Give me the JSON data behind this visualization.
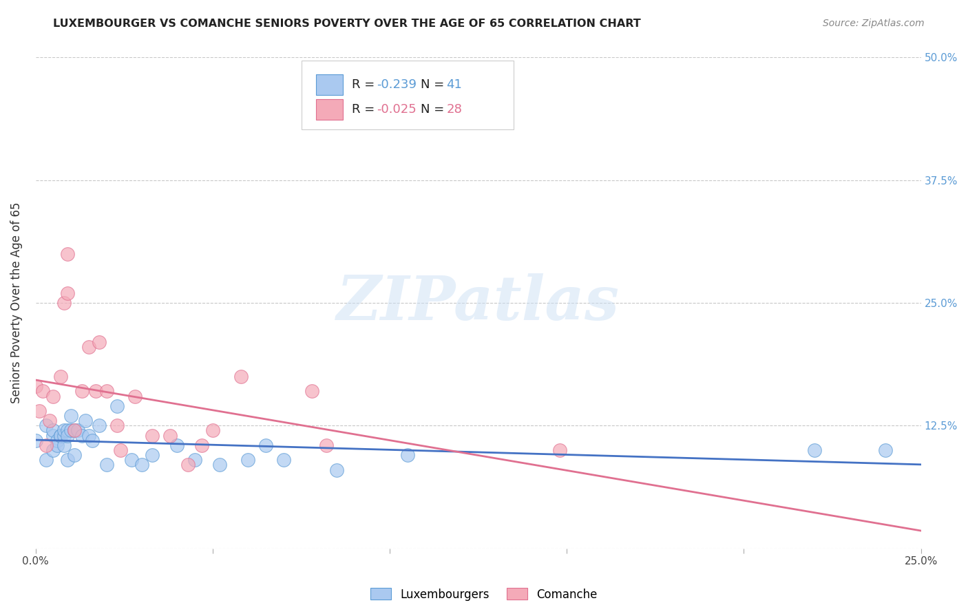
{
  "title": "LUXEMBOURGER VS COMANCHE SENIORS POVERTY OVER THE AGE OF 65 CORRELATION CHART",
  "source": "Source: ZipAtlas.com",
  "ylabel": "Seniors Poverty Over the Age of 65",
  "xlim": [
    0.0,
    0.25
  ],
  "ylim": [
    0.0,
    0.5
  ],
  "xticks": [
    0.0,
    0.05,
    0.1,
    0.15,
    0.2,
    0.25
  ],
  "yticks": [
    0.0,
    0.125,
    0.25,
    0.375,
    0.5
  ],
  "background_color": "#ffffff",
  "grid_color": "#c8c8c8",
  "lux_face_color": "#aac9f0",
  "com_face_color": "#f4aab8",
  "lux_edge_color": "#5b9bd5",
  "com_edge_color": "#e07090",
  "lux_line_color": "#4472c4",
  "com_line_color": "#e07090",
  "lux_R": -0.239,
  "lux_N": 41,
  "com_R": -0.025,
  "com_N": 28,
  "watermark_text": "ZIPatlas",
  "legend_label_lux": "Luxembourgers",
  "legend_label_com": "Comanche",
  "lux_x": [
    0.0,
    0.003,
    0.003,
    0.005,
    0.005,
    0.005,
    0.006,
    0.006,
    0.007,
    0.007,
    0.008,
    0.008,
    0.008,
    0.009,
    0.009,
    0.009,
    0.01,
    0.01,
    0.011,
    0.011,
    0.012,
    0.013,
    0.014,
    0.015,
    0.016,
    0.018,
    0.02,
    0.023,
    0.027,
    0.03,
    0.033,
    0.04,
    0.045,
    0.052,
    0.06,
    0.065,
    0.07,
    0.085,
    0.105,
    0.22,
    0.24
  ],
  "lux_y": [
    0.11,
    0.125,
    0.09,
    0.115,
    0.1,
    0.12,
    0.11,
    0.105,
    0.115,
    0.115,
    0.115,
    0.105,
    0.12,
    0.12,
    0.09,
    0.115,
    0.135,
    0.12,
    0.12,
    0.095,
    0.12,
    0.115,
    0.13,
    0.115,
    0.11,
    0.125,
    0.085,
    0.145,
    0.09,
    0.085,
    0.095,
    0.105,
    0.09,
    0.085,
    0.09,
    0.105,
    0.09,
    0.08,
    0.095,
    0.1,
    0.1
  ],
  "com_x": [
    0.0,
    0.001,
    0.002,
    0.003,
    0.004,
    0.005,
    0.007,
    0.008,
    0.009,
    0.009,
    0.011,
    0.013,
    0.015,
    0.017,
    0.018,
    0.02,
    0.023,
    0.024,
    0.028,
    0.033,
    0.038,
    0.043,
    0.047,
    0.05,
    0.058,
    0.078,
    0.082,
    0.148
  ],
  "com_y": [
    0.165,
    0.14,
    0.16,
    0.105,
    0.13,
    0.155,
    0.175,
    0.25,
    0.26,
    0.3,
    0.12,
    0.16,
    0.205,
    0.16,
    0.21,
    0.16,
    0.125,
    0.1,
    0.155,
    0.115,
    0.115,
    0.085,
    0.105,
    0.12,
    0.175,
    0.16,
    0.105,
    0.1
  ]
}
